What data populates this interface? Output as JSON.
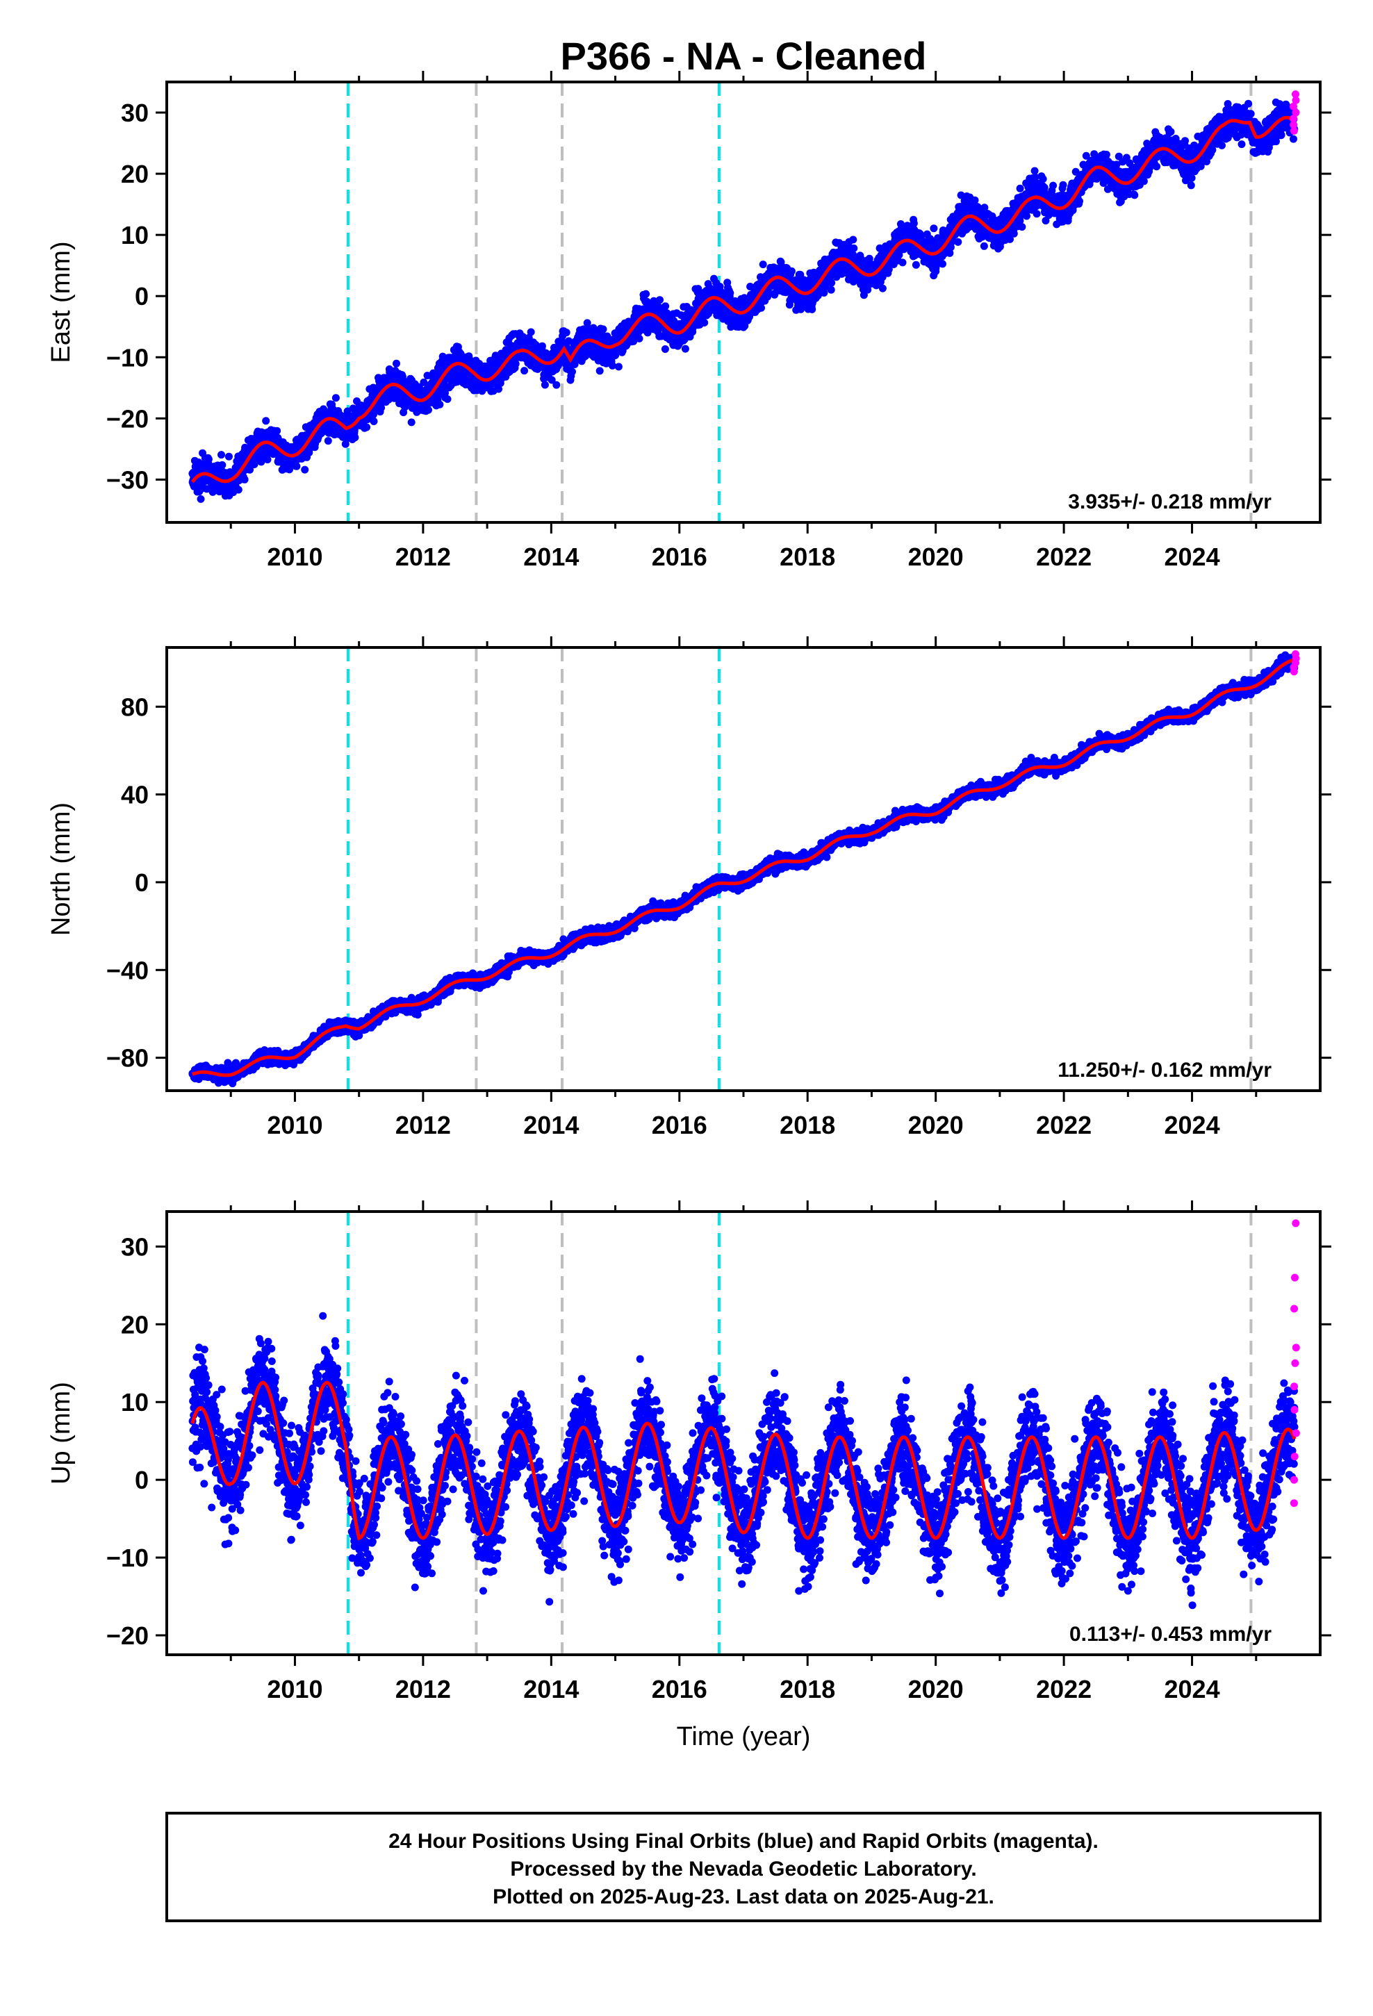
{
  "title": "P366  - NA - Cleaned",
  "chart_data": [
    {
      "type": "scatter",
      "panel": "east",
      "ylabel": "East (mm)",
      "xlabel": "",
      "xlim": [
        2008.0,
        2026.0
      ],
      "ylim": [
        -37,
        35
      ],
      "yticks": [
        30,
        20,
        10,
        0,
        -10,
        -20,
        -30
      ],
      "xticks": [
        2010,
        2012,
        2014,
        2016,
        2018,
        2020,
        2022,
        2024
      ],
      "rate_text": "3.935+/- 0.218 mm/yr",
      "seasonal_amplitude": 2.0,
      "noise": 1.3,
      "fit_model": {
        "ref_year": 2016.5,
        "offset": -2.0,
        "rate": 3.935
      },
      "knots": [
        [
          2008.4,
          -32
        ],
        [
          2009.0,
          -28
        ],
        [
          2010.0,
          -24
        ],
        [
          2010.8,
          -21
        ],
        [
          2011.0,
          -18
        ],
        [
          2012.0,
          -15
        ],
        [
          2012.8,
          -12
        ],
        [
          2013.5,
          -11
        ],
        [
          2014.2,
          -8
        ],
        [
          2014.3,
          -11
        ],
        [
          2015.0,
          -6
        ],
        [
          2016.0,
          -4
        ],
        [
          2016.6,
          -2
        ],
        [
          2017.5,
          1
        ],
        [
          2018.5,
          4
        ],
        [
          2019.5,
          7
        ],
        [
          2020.5,
          11
        ],
        [
          2021.5,
          14
        ],
        [
          2022.5,
          19
        ],
        [
          2023.5,
          22
        ],
        [
          2024.5,
          26
        ],
        [
          2024.9,
          30
        ],
        [
          2025.0,
          28
        ],
        [
          2025.6,
          27
        ]
      ],
      "rapid_values": [
        27,
        28,
        29,
        30,
        31,
        32,
        33
      ]
    },
    {
      "type": "scatter",
      "panel": "north",
      "ylabel": "North (mm)",
      "xlabel": "",
      "xlim": [
        2008.0,
        2026.0
      ],
      "ylim": [
        -95,
        107
      ],
      "yticks": [
        80,
        40,
        0,
        -40,
        -80
      ],
      "xticks": [
        2010,
        2012,
        2014,
        2016,
        2018,
        2020,
        2022,
        2024
      ],
      "rate_text": "11.250+/- 0.162 mm/yr",
      "seasonal_amplitude": 1.8,
      "noise": 1.4,
      "fit_model": {
        "ref_year": 2016.5,
        "offset": -1.0,
        "rate": 11.25
      },
      "knots": [
        [
          2008.4,
          -89
        ],
        [
          2009.0,
          -86
        ],
        [
          2010.0,
          -78
        ],
        [
          2010.8,
          -65
        ],
        [
          2011.0,
          -65
        ],
        [
          2012.0,
          -53
        ],
        [
          2012.8,
          -44
        ],
        [
          2014.0,
          -32
        ],
        [
          2015.0,
          -21
        ],
        [
          2016.0,
          -10
        ],
        [
          2016.6,
          -2
        ],
        [
          2018.0,
          12
        ],
        [
          2019.0,
          24
        ],
        [
          2020.0,
          33
        ],
        [
          2021.0,
          45
        ],
        [
          2022.0,
          55
        ],
        [
          2023.0,
          67
        ],
        [
          2024.0,
          78
        ],
        [
          2024.9,
          90
        ],
        [
          2025.6,
          100
        ]
      ],
      "rapid_values": [
        96,
        98,
        100,
        102,
        104
      ]
    },
    {
      "type": "scatter",
      "panel": "up",
      "ylabel": "Up (mm)",
      "xlabel": "Time (year)",
      "xlim": [
        2008.0,
        2026.0
      ],
      "ylim": [
        -22.5,
        34.5
      ],
      "yticks": [
        30,
        20,
        10,
        0,
        -10,
        -20
      ],
      "xticks": [
        2010,
        2012,
        2014,
        2016,
        2018,
        2020,
        2022,
        2024
      ],
      "rate_text": "0.113+/- 0.453 mm/yr",
      "seasonal_amplitude": 6.5,
      "noise": 3.0,
      "fit_model": {
        "ref_year": 2016.5,
        "offset": -0.9,
        "rate": 0.113
      },
      "knots": [
        [
          2008.4,
          2
        ],
        [
          2009.0,
          6
        ],
        [
          2010.0,
          6
        ],
        [
          2010.8,
          6
        ],
        [
          2011.0,
          -1
        ],
        [
          2012.0,
          -1
        ],
        [
          2014.0,
          0
        ],
        [
          2016.0,
          1
        ],
        [
          2016.6,
          0
        ],
        [
          2018.0,
          -1
        ],
        [
          2020.0,
          -1
        ],
        [
          2022.0,
          -1
        ],
        [
          2024.0,
          -1
        ],
        [
          2024.9,
          0
        ],
        [
          2025.6,
          0
        ]
      ],
      "rapid_values": [
        -3,
        0,
        3,
        6,
        9,
        12,
        15,
        17,
        22,
        26,
        33
      ]
    }
  ],
  "events": {
    "cyan_dashed": [
      2010.83,
      2016.62
    ],
    "gray_dashed": [
      2012.83,
      2014.17,
      2024.92
    ]
  },
  "series_colors": {
    "final_orbits": "#0000ff",
    "rapid_orbits": "#ff00ff",
    "model_fit": "#ff0000",
    "cyan_event": "#00e5ee",
    "gray_event": "#bfbfbf"
  },
  "footer": {
    "line1": "24 Hour Positions Using Final Orbits (blue) and Rapid Orbits (magenta).",
    "line2": "Processed by the Nevada Geodetic Laboratory.",
    "line3": "Plotted on 2025-Aug-23. Last data on 2025-Aug-21."
  }
}
